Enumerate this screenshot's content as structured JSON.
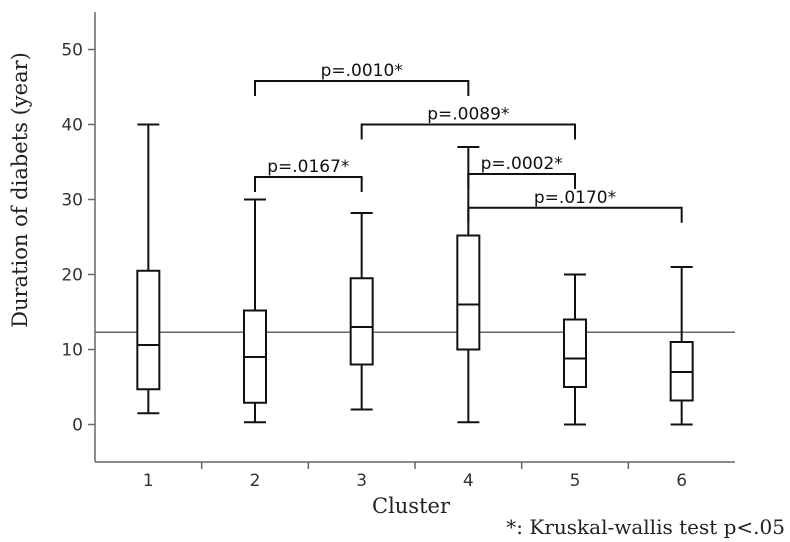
{
  "chart_data": {
    "type": "box",
    "xlabel": "Cluster",
    "ylabel": "Duration of diabets (year)",
    "categories": [
      "1",
      "2",
      "3",
      "4",
      "5",
      "6"
    ],
    "y_ticks": [
      "0",
      "10",
      "20",
      "30",
      "40",
      "50"
    ],
    "ylim": [
      -5,
      55
    ],
    "reference_line": 12.3,
    "boxes": [
      {
        "min": 1.5,
        "q1": 4.7,
        "median": 10.6,
        "q3": 20.5,
        "max": 40
      },
      {
        "min": 0.3,
        "q1": 2.9,
        "median": 9.0,
        "q3": 15.2,
        "max": 30
      },
      {
        "min": 2.0,
        "q1": 8.0,
        "median": 13.0,
        "q3": 19.5,
        "max": 28.2
      },
      {
        "min": 0.3,
        "q1": 10.0,
        "median": 16.0,
        "q3": 25.2,
        "max": 37
      },
      {
        "min": 0.0,
        "q1": 5.0,
        "median": 8.8,
        "q3": 14.0,
        "max": 20
      },
      {
        "min": 0.0,
        "q1": 3.2,
        "median": 7.0,
        "q3": 11.0,
        "max": 21
      }
    ],
    "comparisons": [
      {
        "from": "2",
        "to": "4",
        "label": "p=.0010*",
        "y": 45.8
      },
      {
        "from": "3",
        "to": "5",
        "label": "p=.0089*",
        "y": 40.0
      },
      {
        "from": "2",
        "to": "3",
        "label": "p=.0167*",
        "y": 33.0
      },
      {
        "from": "4",
        "to": "5",
        "label": "p=.0002*",
        "y": 33.4
      },
      {
        "from": "4",
        "to": "6",
        "label": "p=.0170*",
        "y": 28.9
      }
    ],
    "footnote": "*: Kruskal-wallis test p<.05",
    "grid": false,
    "legend": "none"
  }
}
